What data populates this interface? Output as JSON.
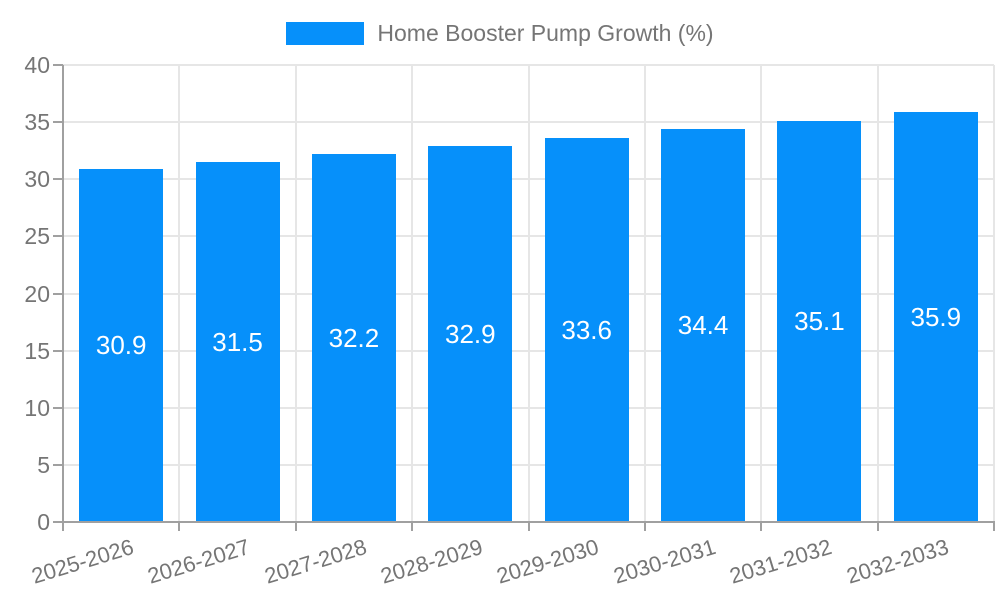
{
  "chart_data": {
    "type": "bar",
    "title": "Home Booster Pump Growth (%)",
    "categories": [
      "2025-2026",
      "2026-2027",
      "2027-2028",
      "2028-2029",
      "2029-2030",
      "2030-2031",
      "2031-2032",
      "2032-2033"
    ],
    "values": [
      30.9,
      31.5,
      32.2,
      32.9,
      33.6,
      34.4,
      35.1,
      35.9
    ],
    "bar_labels": [
      "30.9",
      "31.5",
      "32.2",
      "32.9",
      "33.6",
      "34.4",
      "35.1",
      "35.9"
    ],
    "xlabel": "",
    "ylabel": "",
    "ylim": [
      0,
      40
    ],
    "yticks": [
      0,
      5,
      10,
      15,
      20,
      25,
      30,
      35,
      40
    ],
    "grid": true,
    "legend_position": "top-center",
    "x_label_rotation_deg": -17,
    "colors": {
      "bar": "#0690fa",
      "bar_label": "#ffffff",
      "axis_text": "#757575",
      "axis_line": "#a0a0a0",
      "gridline": "#e6e6e6",
      "background": "#ffffff"
    }
  }
}
